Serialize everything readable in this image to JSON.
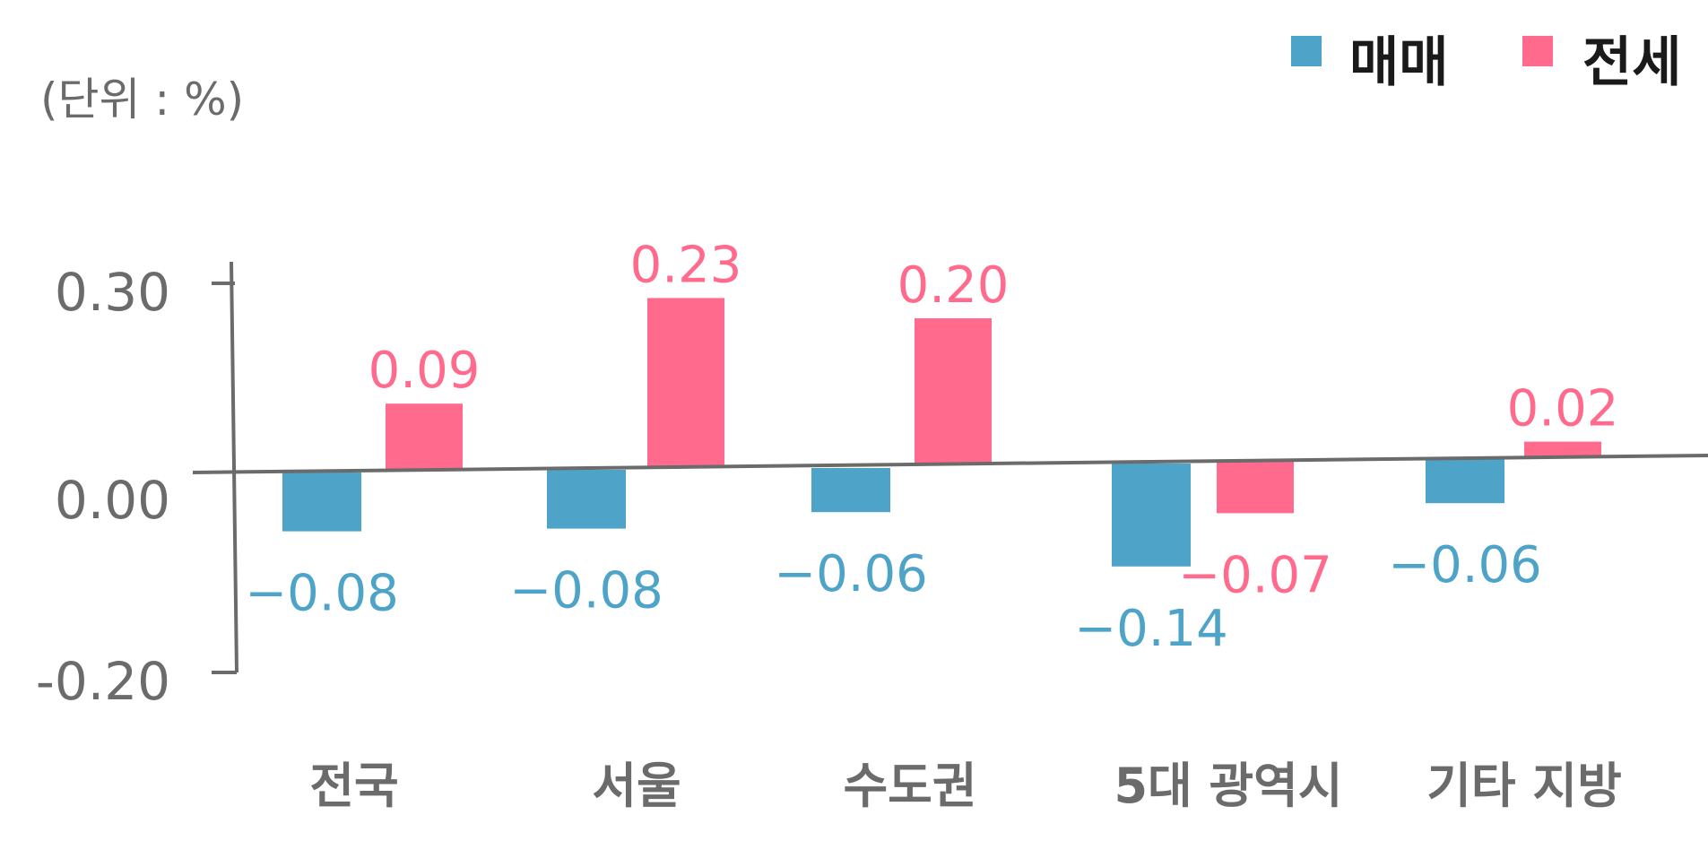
{
  "chart_data": {
    "type": "bar",
    "unit_label": "(단위 : %)",
    "categories": [
      "전국",
      "서울",
      "수도권",
      "5대 광역시",
      "기타 지방"
    ],
    "series": [
      {
        "name": "매매",
        "color": "#4ea3c8",
        "values": [
          -0.08,
          -0.08,
          -0.06,
          -0.14,
          -0.06
        ]
      },
      {
        "name": "전세",
        "color": "#ff6a8d",
        "values": [
          0.09,
          0.23,
          0.2,
          -0.07,
          0.02
        ]
      }
    ],
    "y_ticks": [
      "0.30",
      "0.00",
      "-0.20"
    ],
    "ylim": [
      -0.2,
      0.3
    ],
    "legend_position": "top-right",
    "grid": false
  }
}
